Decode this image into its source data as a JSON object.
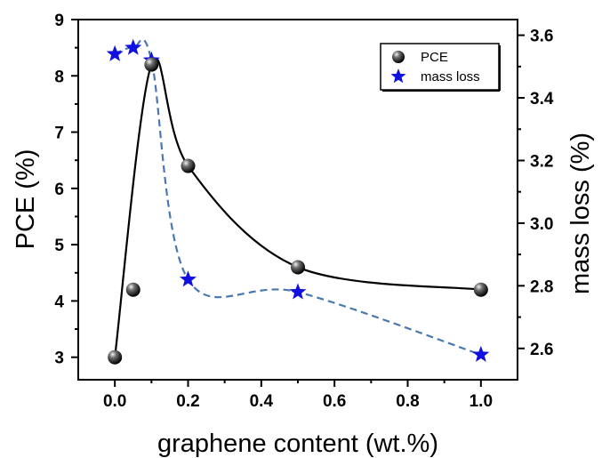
{
  "chart_data": {
    "type": "scatter",
    "xlabel": "graphene content (wt.%)",
    "ylabel": "PCE (%)",
    "y2label": "mass loss (%)",
    "xlim": [
      -0.1,
      1.1
    ],
    "ylim": [
      2.6,
      9.0
    ],
    "y2lim": [
      2.5,
      3.65
    ],
    "x_ticks": [
      0.0,
      0.2,
      0.4,
      0.6,
      0.8,
      1.0
    ],
    "x_tick_labels": [
      "0.0",
      "0.2",
      "0.4",
      "0.6",
      "0.8",
      "1.0"
    ],
    "y_ticks": [
      3,
      4,
      5,
      6,
      7,
      8,
      9
    ],
    "y_tick_labels": [
      "3",
      "4",
      "5",
      "6",
      "7",
      "8",
      "9"
    ],
    "y2_ticks": [
      2.6,
      2.8,
      3.0,
      3.2,
      3.4,
      3.6
    ],
    "y2_tick_labels": [
      "2.6",
      "2.8",
      "3.0",
      "3.2",
      "3.4",
      "3.6"
    ],
    "legend_position": "top-right",
    "series": [
      {
        "name": "PCE",
        "axis": "left",
        "marker": "sphere",
        "color": "#000000",
        "line_style": "solid",
        "x": [
          0.0,
          0.05,
          0.1,
          0.2,
          0.5,
          1.0
        ],
        "y": [
          3.0,
          4.2,
          8.2,
          6.4,
          4.6,
          4.2
        ]
      },
      {
        "name": "mass loss",
        "axis": "right",
        "marker": "star",
        "color": "#1010e0",
        "line_color": "#4a78b0",
        "line_style": "dashed",
        "x": [
          0.0,
          0.05,
          0.1,
          0.2,
          0.5,
          1.0
        ],
        "y": [
          3.54,
          3.56,
          3.52,
          2.82,
          2.78,
          2.58
        ]
      }
    ]
  }
}
